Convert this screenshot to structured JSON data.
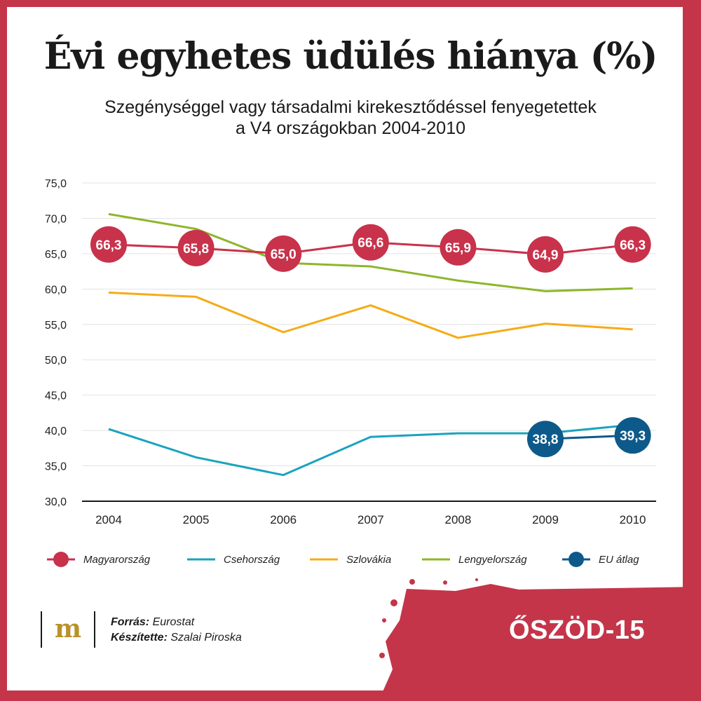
{
  "header": {
    "title": "Évi egyhetes üdülés hiánya (%)",
    "subtitle_line1": "Szegénységgel vagy társadalmi kirekesztődéssel fenyegetettek",
    "subtitle_line2": "a V4 országokban 2004-2010"
  },
  "chart_data": {
    "type": "line",
    "categories": [
      "2004",
      "2005",
      "2006",
      "2007",
      "2008",
      "2009",
      "2010"
    ],
    "ylim": [
      30,
      75
    ],
    "yticks": [
      "30,0",
      "35,0",
      "40,0",
      "45,0",
      "50,0",
      "55,0",
      "60,0",
      "65,0",
      "70,0",
      "75,0"
    ],
    "grid": true,
    "legend_position": "bottom",
    "series": [
      {
        "name": "Magyarország",
        "color": "#c8324b",
        "values": [
          66.3,
          65.8,
          65.0,
          66.6,
          65.9,
          64.9,
          66.3
        ],
        "labels": [
          "66,3",
          "65,8",
          "65,0",
          "66,6",
          "65,9",
          "64,9",
          "66,3"
        ],
        "marker": true
      },
      {
        "name": "Csehország",
        "color": "#1aa3bd",
        "values": [
          40.2,
          36.2,
          33.7,
          39.1,
          39.6,
          39.6,
          40.8
        ],
        "marker": false
      },
      {
        "name": "Szlovákia",
        "color": "#f5ac17",
        "values": [
          59.5,
          58.9,
          53.9,
          57.7,
          53.1,
          55.1,
          54.3
        ],
        "marker": false
      },
      {
        "name": "Lengyelország",
        "color": "#8db62b",
        "values": [
          70.6,
          68.5,
          63.7,
          63.2,
          61.2,
          59.7,
          60.1
        ],
        "marker": false
      },
      {
        "name": "EU átlag",
        "color": "#0d5a8a",
        "values": [
          null,
          null,
          null,
          null,
          null,
          38.8,
          39.3
        ],
        "labels": [
          "",
          "",
          "",
          "",
          "",
          "38,8",
          "39,3"
        ],
        "marker": true
      }
    ]
  },
  "footer": {
    "logo_letter": "m",
    "source_label": "Forrás:",
    "source_value": " Eurostat",
    "author_label": "Készítette:",
    "author_value": " Szalai Piroska",
    "brand": "ŐSZÖD-15"
  },
  "colors": {
    "accent": "#c4354a",
    "logo_gold": "#b8922a"
  }
}
